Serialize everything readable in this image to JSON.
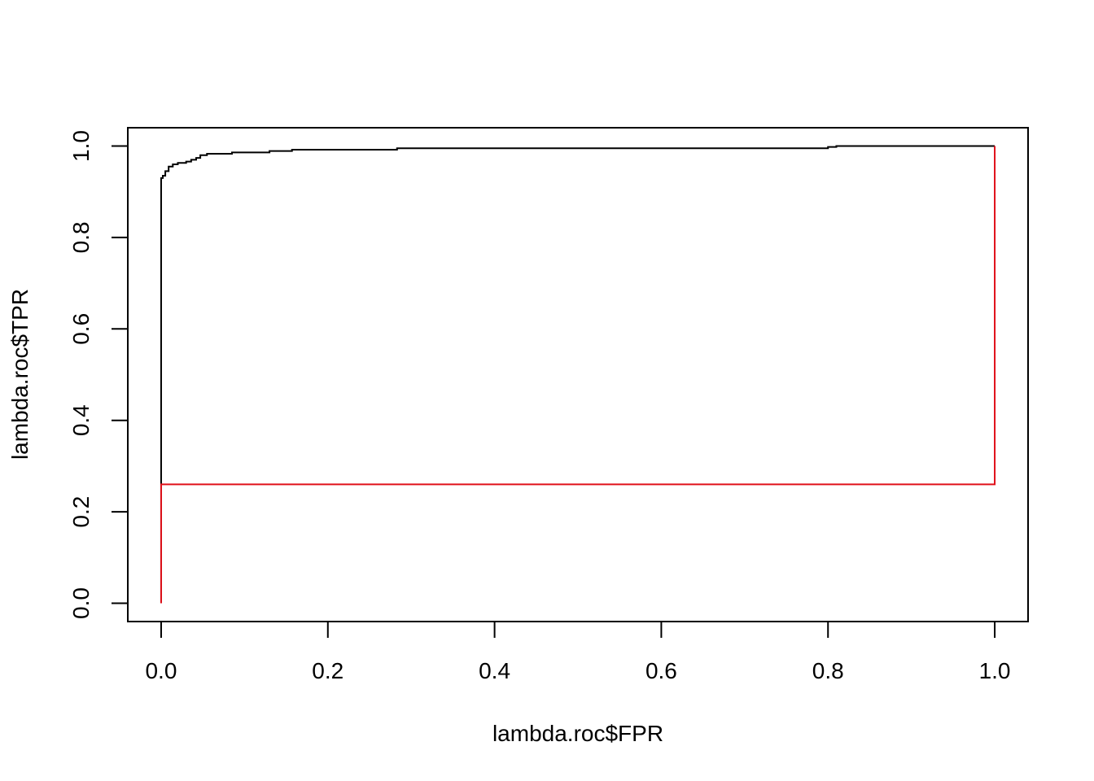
{
  "chart_data": {
    "type": "line",
    "title": "",
    "xlabel": "lambda.roc$FPR",
    "ylabel": "lambda.roc$TPR",
    "xlim": [
      -0.04,
      1.04
    ],
    "ylim": [
      -0.04,
      1.04
    ],
    "x_ticks": [
      0.0,
      0.2,
      0.4,
      0.6,
      0.8,
      1.0
    ],
    "x_tick_labels": [
      "0.0",
      "0.2",
      "0.4",
      "0.6",
      "0.8",
      "1.0"
    ],
    "y_ticks": [
      0.0,
      0.2,
      0.4,
      0.6,
      0.8,
      1.0
    ],
    "y_tick_labels": [
      "0.0",
      "0.2",
      "0.4",
      "0.6",
      "0.8",
      "1.0"
    ],
    "grid": false,
    "legend": "none",
    "series": [
      {
        "color": "#000000",
        "step": true,
        "points": [
          [
            0.0,
            0.0
          ],
          [
            0.0,
            0.93
          ],
          [
            0.002,
            0.93
          ],
          [
            0.002,
            0.935
          ],
          [
            0.005,
            0.935
          ],
          [
            0.005,
            0.945
          ],
          [
            0.009,
            0.945
          ],
          [
            0.009,
            0.955
          ],
          [
            0.014,
            0.955
          ],
          [
            0.014,
            0.96
          ],
          [
            0.02,
            0.96
          ],
          [
            0.02,
            0.963
          ],
          [
            0.03,
            0.963
          ],
          [
            0.03,
            0.966
          ],
          [
            0.036,
            0.966
          ],
          [
            0.036,
            0.97
          ],
          [
            0.042,
            0.97
          ],
          [
            0.042,
            0.974
          ],
          [
            0.047,
            0.974
          ],
          [
            0.047,
            0.98
          ],
          [
            0.055,
            0.98
          ],
          [
            0.055,
            0.983
          ],
          [
            0.085,
            0.983
          ],
          [
            0.085,
            0.986
          ],
          [
            0.13,
            0.986
          ],
          [
            0.13,
            0.989
          ],
          [
            0.157,
            0.989
          ],
          [
            0.157,
            0.992
          ],
          [
            0.283,
            0.992
          ],
          [
            0.283,
            0.995
          ],
          [
            0.8,
            0.995
          ],
          [
            0.8,
            0.998
          ],
          [
            0.81,
            0.998
          ],
          [
            0.81,
            1.0
          ],
          [
            1.0,
            1.0
          ]
        ]
      },
      {
        "color": "#e0101a",
        "step": true,
        "points": [
          [
            0.0,
            0.0
          ],
          [
            0.0,
            0.26
          ],
          [
            1.0,
            0.26
          ],
          [
            1.0,
            1.0
          ]
        ]
      }
    ]
  }
}
